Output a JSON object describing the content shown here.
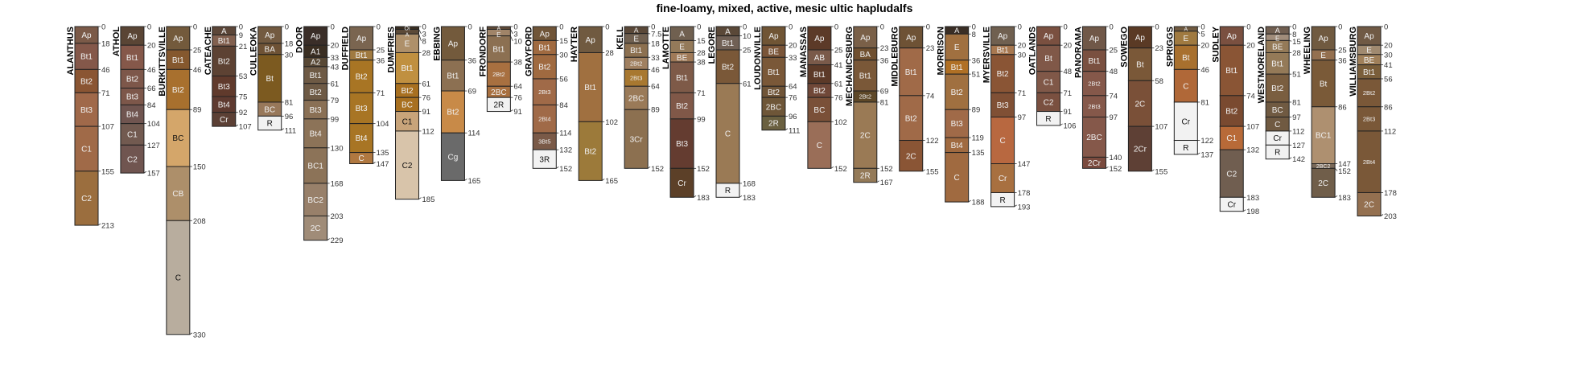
{
  "title": "fine-loamy, mixed, active, mesic ultic hapludalfs",
  "profiles": [
    {
      "name": "ALANTHUS",
      "horizons": [
        [
          "Ap",
          0,
          18,
          "#7b5a48"
        ],
        [
          "Bt1",
          18,
          46,
          "#84584a"
        ],
        [
          "Bt2",
          46,
          71,
          "#8a5533"
        ],
        [
          "Bt3",
          71,
          107,
          "#a0694a"
        ],
        [
          "C1",
          107,
          155,
          "#a06a48"
        ],
        [
          "C2",
          155,
          213,
          "#9b6e3e"
        ]
      ]
    },
    {
      "name": "ATHOL",
      "horizons": [
        [
          "Ap",
          0,
          20,
          "#5a4535"
        ],
        [
          "Bt1",
          20,
          46,
          "#85584a"
        ],
        [
          "Bt2",
          46,
          66,
          "#7d574a"
        ],
        [
          "Bt3",
          66,
          84,
          "#7d574a"
        ],
        [
          "Bt4",
          84,
          104,
          "#705550"
        ],
        [
          "C1",
          104,
          127,
          "#725a50"
        ],
        [
          "C2",
          127,
          157,
          "#705550"
        ]
      ]
    },
    {
      "name": "BURKITTSVILLE",
      "horizons": [
        [
          "Ap",
          0,
          25,
          "#735a3c"
        ],
        [
          "Bt1",
          25,
          46,
          "#85582e"
        ],
        [
          "Bt2",
          46,
          89,
          "#a8702e"
        ],
        [
          "BC",
          89,
          150,
          "#d4a66a"
        ],
        [
          "CB",
          150,
          208,
          "#ad8f6a"
        ],
        [
          "C",
          208,
          330,
          "#b8ad9e"
        ]
      ]
    },
    {
      "name": "CATEACHE",
      "horizons": [
        [
          "A",
          0,
          9,
          "#5c4638"
        ],
        [
          "Bt1",
          9,
          21,
          "#82604f"
        ],
        [
          "Bt2",
          21,
          53,
          "#5d4233"
        ],
        [
          "Bt3",
          53,
          75,
          "#603a2c"
        ],
        [
          "Bt4",
          75,
          92,
          "#5e3a30"
        ],
        [
          "Cr",
          92,
          107,
          "#5c4035"
        ]
      ]
    },
    {
      "name": "CULLEOKA",
      "horizons": [
        [
          "Ap",
          0,
          18,
          "#735a40"
        ],
        [
          "BA",
          18,
          30,
          "#6e5235"
        ],
        [
          "Bt",
          30,
          81,
          "#7c5a20"
        ],
        [
          "BC",
          81,
          96,
          "#98785a"
        ],
        [
          "R",
          96,
          111,
          "#f2f2f2"
        ]
      ]
    },
    {
      "name": "DOOR",
      "horizons": [
        [
          "Ap",
          0,
          20,
          "#3a2e28"
        ],
        [
          "A1",
          20,
          33,
          "#3a2e22"
        ],
        [
          "A2",
          33,
          43,
          "#584835"
        ],
        [
          "Bt1",
          43,
          61,
          "#6e5a45"
        ],
        [
          "Bt2",
          61,
          79,
          "#6e5a45"
        ],
        [
          "Bt3",
          79,
          99,
          "#8a7055"
        ],
        [
          "Bt4",
          99,
          130,
          "#8c7358"
        ],
        [
          "BC1",
          130,
          168,
          "#8c7358"
        ],
        [
          "BC2",
          168,
          203,
          "#98806a"
        ],
        [
          "2C",
          203,
          229,
          "#a08c78"
        ]
      ]
    },
    {
      "name": "DUFFIELD",
      "horizons": [
        [
          "Ap",
          0,
          25,
          "#7a6550"
        ],
        [
          "Bt1",
          25,
          36,
          "#a07a40"
        ],
        [
          "Bt2",
          36,
          71,
          "#a87524"
        ],
        [
          "Bt3",
          71,
          104,
          "#a87524"
        ],
        [
          "Bt4",
          104,
          135,
          "#a87524"
        ],
        [
          "C",
          135,
          147,
          "#b07840"
        ]
      ]
    },
    {
      "name": "DUMFRIES",
      "horizons": [
        [
          "Oi",
          0,
          3,
          "#3a2e22"
        ],
        [
          "A",
          3,
          8,
          "#5c4a38"
        ],
        [
          "E",
          8,
          28,
          "#ae906a"
        ],
        [
          "Bt1",
          28,
          61,
          "#c09040"
        ],
        [
          "Bt2",
          61,
          76,
          "#a87020"
        ],
        [
          "BC",
          76,
          91,
          "#a87020"
        ],
        [
          "C1",
          91,
          112,
          "#c8a47a"
        ],
        [
          "C2",
          112,
          185,
          "#d8c4aa"
        ]
      ]
    },
    {
      "name": "EBBING",
      "horizons": [
        [
          "Ap",
          0,
          36,
          "#735a3c"
        ],
        [
          "Bt1",
          36,
          69,
          "#8c7052"
        ],
        [
          "Bt2",
          69,
          114,
          "#c88a48"
        ],
        [
          "Cg",
          114,
          165,
          "#6a6a6a"
        ]
      ]
    },
    {
      "name": "FRONDORF",
      "horizons": [
        [
          "A",
          0,
          3,
          "#604a38"
        ],
        [
          "E",
          3,
          10,
          "#a08468"
        ],
        [
          "Bt1",
          10,
          38,
          "#8c7052"
        ],
        [
          "2Bt2",
          38,
          64,
          "#a87040"
        ],
        [
          "2BC",
          64,
          76,
          "#a87040"
        ],
        [
          "2R",
          76,
          91,
          "#f2f2f2"
        ]
      ]
    },
    {
      "name": "GRAYFORD",
      "horizons": [
        [
          "Ap",
          0,
          15,
          "#705538"
        ],
        [
          "Bt1",
          15,
          30,
          "#a06a40"
        ],
        [
          "Bt2",
          30,
          56,
          "#a06a40"
        ],
        [
          "2Bt3",
          56,
          84,
          "#a06a48"
        ],
        [
          "2Bt4",
          84,
          114,
          "#a06a48"
        ],
        [
          "3Bt5",
          114,
          132,
          "#7a5a48"
        ],
        [
          "3R",
          132,
          152,
          "#f2f2f2"
        ]
      ]
    },
    {
      "name": "HAYTER",
      "horizons": [
        [
          "Ap",
          0,
          28,
          "#705a40"
        ],
        [
          "Bt1",
          28,
          102,
          "#a07040"
        ],
        [
          "Bt2",
          102,
          165,
          "#9c7a3a"
        ]
      ]
    },
    {
      "name": "KELL",
      "horizons": [
        [
          "A",
          0,
          7.5,
          "#5a4838"
        ],
        [
          "E",
          7.5,
          18,
          "#706050"
        ],
        [
          "Bt1",
          18,
          33,
          "#8c7050"
        ],
        [
          "2Bt2",
          33,
          46,
          "#a08060"
        ],
        [
          "2Bt3",
          46,
          64,
          "#a87830"
        ],
        [
          "2BC",
          64,
          89,
          "#9a7a58"
        ],
        [
          "3Cr",
          89,
          152,
          "#8c7050"
        ]
      ]
    },
    {
      "name": "LAMOTTE",
      "horizons": [
        [
          "A",
          0,
          15,
          "#706050"
        ],
        [
          "E",
          15,
          28,
          "#947a5a"
        ],
        [
          "BE",
          28,
          38,
          "#a07a58"
        ],
        [
          "Bt1",
          38,
          71,
          "#7e5a48"
        ],
        [
          "Bt2",
          71,
          99,
          "#805848"
        ],
        [
          "Bt3",
          99,
          152,
          "#643c30"
        ],
        [
          "Cr",
          152,
          183,
          "#5c4028"
        ]
      ]
    },
    {
      "name": "LEGORE",
      "horizons": [
        [
          "A",
          0,
          10,
          "#5a4838"
        ],
        [
          "Bt1",
          10,
          25,
          "#706055"
        ],
        [
          "Bt2",
          25,
          61,
          "#7a5838"
        ],
        [
          "C",
          61,
          168,
          "#9a7a55"
        ],
        [
          "R",
          168,
          183,
          "#f2f2f2"
        ]
      ]
    },
    {
      "name": "LOUDONVILLE",
      "horizons": [
        [
          "Ap",
          0,
          20,
          "#705535"
        ],
        [
          "BE",
          20,
          33,
          "#7a5538"
        ],
        [
          "Bt1",
          33,
          64,
          "#7a5838"
        ],
        [
          "Bt2",
          64,
          76,
          "#705538"
        ],
        [
          "2BC",
          76,
          96,
          "#6e5638"
        ],
        [
          "2R",
          96,
          111,
          "#6a6040"
        ]
      ]
    },
    {
      "name": "MANASSAS",
      "horizons": [
        [
          "Ap",
          0,
          25,
          "#5c3a28"
        ],
        [
          "AB",
          25,
          41,
          "#7a5a4a"
        ],
        [
          "Bt1",
          41,
          61,
          "#5c3a28"
        ],
        [
          "Bt2",
          61,
          76,
          "#704838"
        ],
        [
          "BC",
          76,
          102,
          "#7a5038"
        ],
        [
          "C",
          102,
          152,
          "#9a6e58"
        ]
      ]
    },
    {
      "name": "MECHANICSBURG",
      "horizons": [
        [
          "Ap",
          0,
          23,
          "#7a6048"
        ],
        [
          "BA",
          23,
          36,
          "#705030"
        ],
        [
          "Bt1",
          36,
          69,
          "#7a5838"
        ],
        [
          "2Bt2",
          69,
          81,
          "#5e4828"
        ],
        [
          "2C",
          81,
          152,
          "#9a7a55"
        ],
        [
          "2R",
          152,
          167,
          "#947a58"
        ]
      ]
    },
    {
      "name": "MIDDLEBURG",
      "horizons": [
        [
          "Ap",
          0,
          23,
          "#6e5235"
        ],
        [
          "Bt1",
          23,
          74,
          "#a06a48"
        ],
        [
          "Bt2",
          74,
          122,
          "#a06a48"
        ],
        [
          "2C",
          122,
          155,
          "#8a5535"
        ]
      ]
    },
    {
      "name": "MORRISON",
      "horizons": [
        [
          "A",
          0,
          8,
          "#3a2e25"
        ],
        [
          "E",
          8,
          36,
          "#a07040"
        ],
        [
          "Bt1",
          36,
          51,
          "#b07025"
        ],
        [
          "Bt2",
          51,
          89,
          "#a07040"
        ],
        [
          "Bt3",
          89,
          119,
          "#a06a48"
        ],
        [
          "Bt4",
          119,
          135,
          "#a06a40"
        ],
        [
          "C",
          135,
          188,
          "#a06a40"
        ]
      ]
    },
    {
      "name": "MYERSVILLE",
      "horizons": [
        [
          "Ap",
          0,
          20,
          "#706050"
        ],
        [
          "Bt1",
          20,
          30,
          "#a87850"
        ],
        [
          "Bt2",
          30,
          71,
          "#8a5535"
        ],
        [
          "Bt3",
          71,
          97,
          "#805035"
        ],
        [
          "C",
          97,
          147,
          "#b86840"
        ],
        [
          "Cr",
          147,
          178,
          "#a87040"
        ],
        [
          "R",
          178,
          193,
          "#f2f2f2"
        ]
      ]
    },
    {
      "name": "OATLANDS",
      "horizons": [
        [
          "Ap",
          0,
          20,
          "#7a5040"
        ],
        [
          "Bt",
          20,
          48,
          "#805848"
        ],
        [
          "C1",
          48,
          71,
          "#805848"
        ],
        [
          "C2",
          71,
          91,
          "#7a5040"
        ],
        [
          "R",
          91,
          106,
          "#f2f2f2"
        ]
      ]
    },
    {
      "name": "PANORAMA",
      "horizons": [
        [
          "Ap",
          0,
          25,
          "#705848"
        ],
        [
          "Bt1",
          25,
          48,
          "#7a5040"
        ],
        [
          "2Bt2",
          48,
          74,
          "#85584a"
        ],
        [
          "2Bt3",
          74,
          97,
          "#85584a"
        ],
        [
          "2BC",
          97,
          140,
          "#85584a"
        ],
        [
          "2Cr",
          140,
          152,
          "#7a4a3e"
        ]
      ]
    },
    {
      "name": "SOWEGO",
      "horizons": [
        [
          "Ap",
          0,
          23,
          "#5a3a25"
        ],
        [
          "Bt",
          23,
          58,
          "#7a5838"
        ],
        [
          "2C",
          58,
          107,
          "#7a5038"
        ],
        [
          "2Cr",
          107,
          155,
          "#5e4035"
        ]
      ]
    },
    {
      "name": "SPRIGGS",
      "horizons": [
        [
          "A",
          0,
          5,
          "#705a40"
        ],
        [
          "E",
          5,
          20,
          "#a07a40"
        ],
        [
          "Bt",
          20,
          46,
          "#a8702e"
        ],
        [
          "C",
          46,
          81,
          "#b06838"
        ],
        [
          "Cr",
          81,
          122,
          "#f2f2f2"
        ],
        [
          "R",
          122,
          137,
          "#f2f2f2"
        ]
      ]
    },
    {
      "name": "SUDLEY",
      "horizons": [
        [
          "Ap",
          0,
          20,
          "#7a5040"
        ],
        [
          "Bt1",
          20,
          74,
          "#8a5535"
        ],
        [
          "Bt2",
          74,
          107,
          "#7a4a30"
        ],
        [
          "C1",
          107,
          132,
          "#b86a38"
        ],
        [
          "C2",
          132,
          183,
          "#705e50"
        ],
        [
          "Cr",
          183,
          198,
          "#f2f2f2"
        ]
      ]
    },
    {
      "name": "WESTMORELAND",
      "horizons": [
        [
          "A",
          0,
          8,
          "#705e50"
        ],
        [
          "E",
          8,
          15,
          "#a08c7a"
        ],
        [
          "BE",
          15,
          28,
          "#947a58"
        ],
        [
          "Bt1",
          28,
          51,
          "#947a58"
        ],
        [
          "Bt2",
          51,
          81,
          "#7a5e40"
        ],
        [
          "BC",
          81,
          97,
          "#705a42"
        ],
        [
          "C",
          97,
          112,
          "#705a42"
        ],
        [
          "Cr",
          112,
          127,
          "#f2f2f2"
        ],
        [
          "R",
          127,
          142,
          "#f2f2f2"
        ]
      ]
    },
    {
      "name": "WHEELING",
      "horizons": [
        [
          "Ap",
          0,
          25,
          "#705a40"
        ],
        [
          "E",
          25,
          36,
          "#947050"
        ],
        [
          "Bt",
          36,
          86,
          "#7a5a38"
        ],
        [
          "BC1",
          86,
          147,
          "#ae9070"
        ],
        [
          "2BC2",
          147,
          152,
          "#7a6a5a"
        ],
        [
          "2C",
          152,
          183,
          "#705e4a"
        ]
      ]
    },
    {
      "name": "WILLIAMSBURG",
      "horizons": [
        [
          "Ap",
          0,
          20,
          "#705a45"
        ],
        [
          "E",
          20,
          30,
          "#a08a70"
        ],
        [
          "BE",
          30,
          41,
          "#a0805a"
        ],
        [
          "Bt1",
          41,
          56,
          "#7a5e3a"
        ],
        [
          "2Bt2",
          56,
          86,
          "#7a5838"
        ],
        [
          "2Bt3",
          86,
          112,
          "#7a5838"
        ],
        [
          "2Bt4",
          112,
          178,
          "#7a5838"
        ],
        [
          "2C",
          178,
          203,
          "#947050"
        ]
      ]
    }
  ]
}
